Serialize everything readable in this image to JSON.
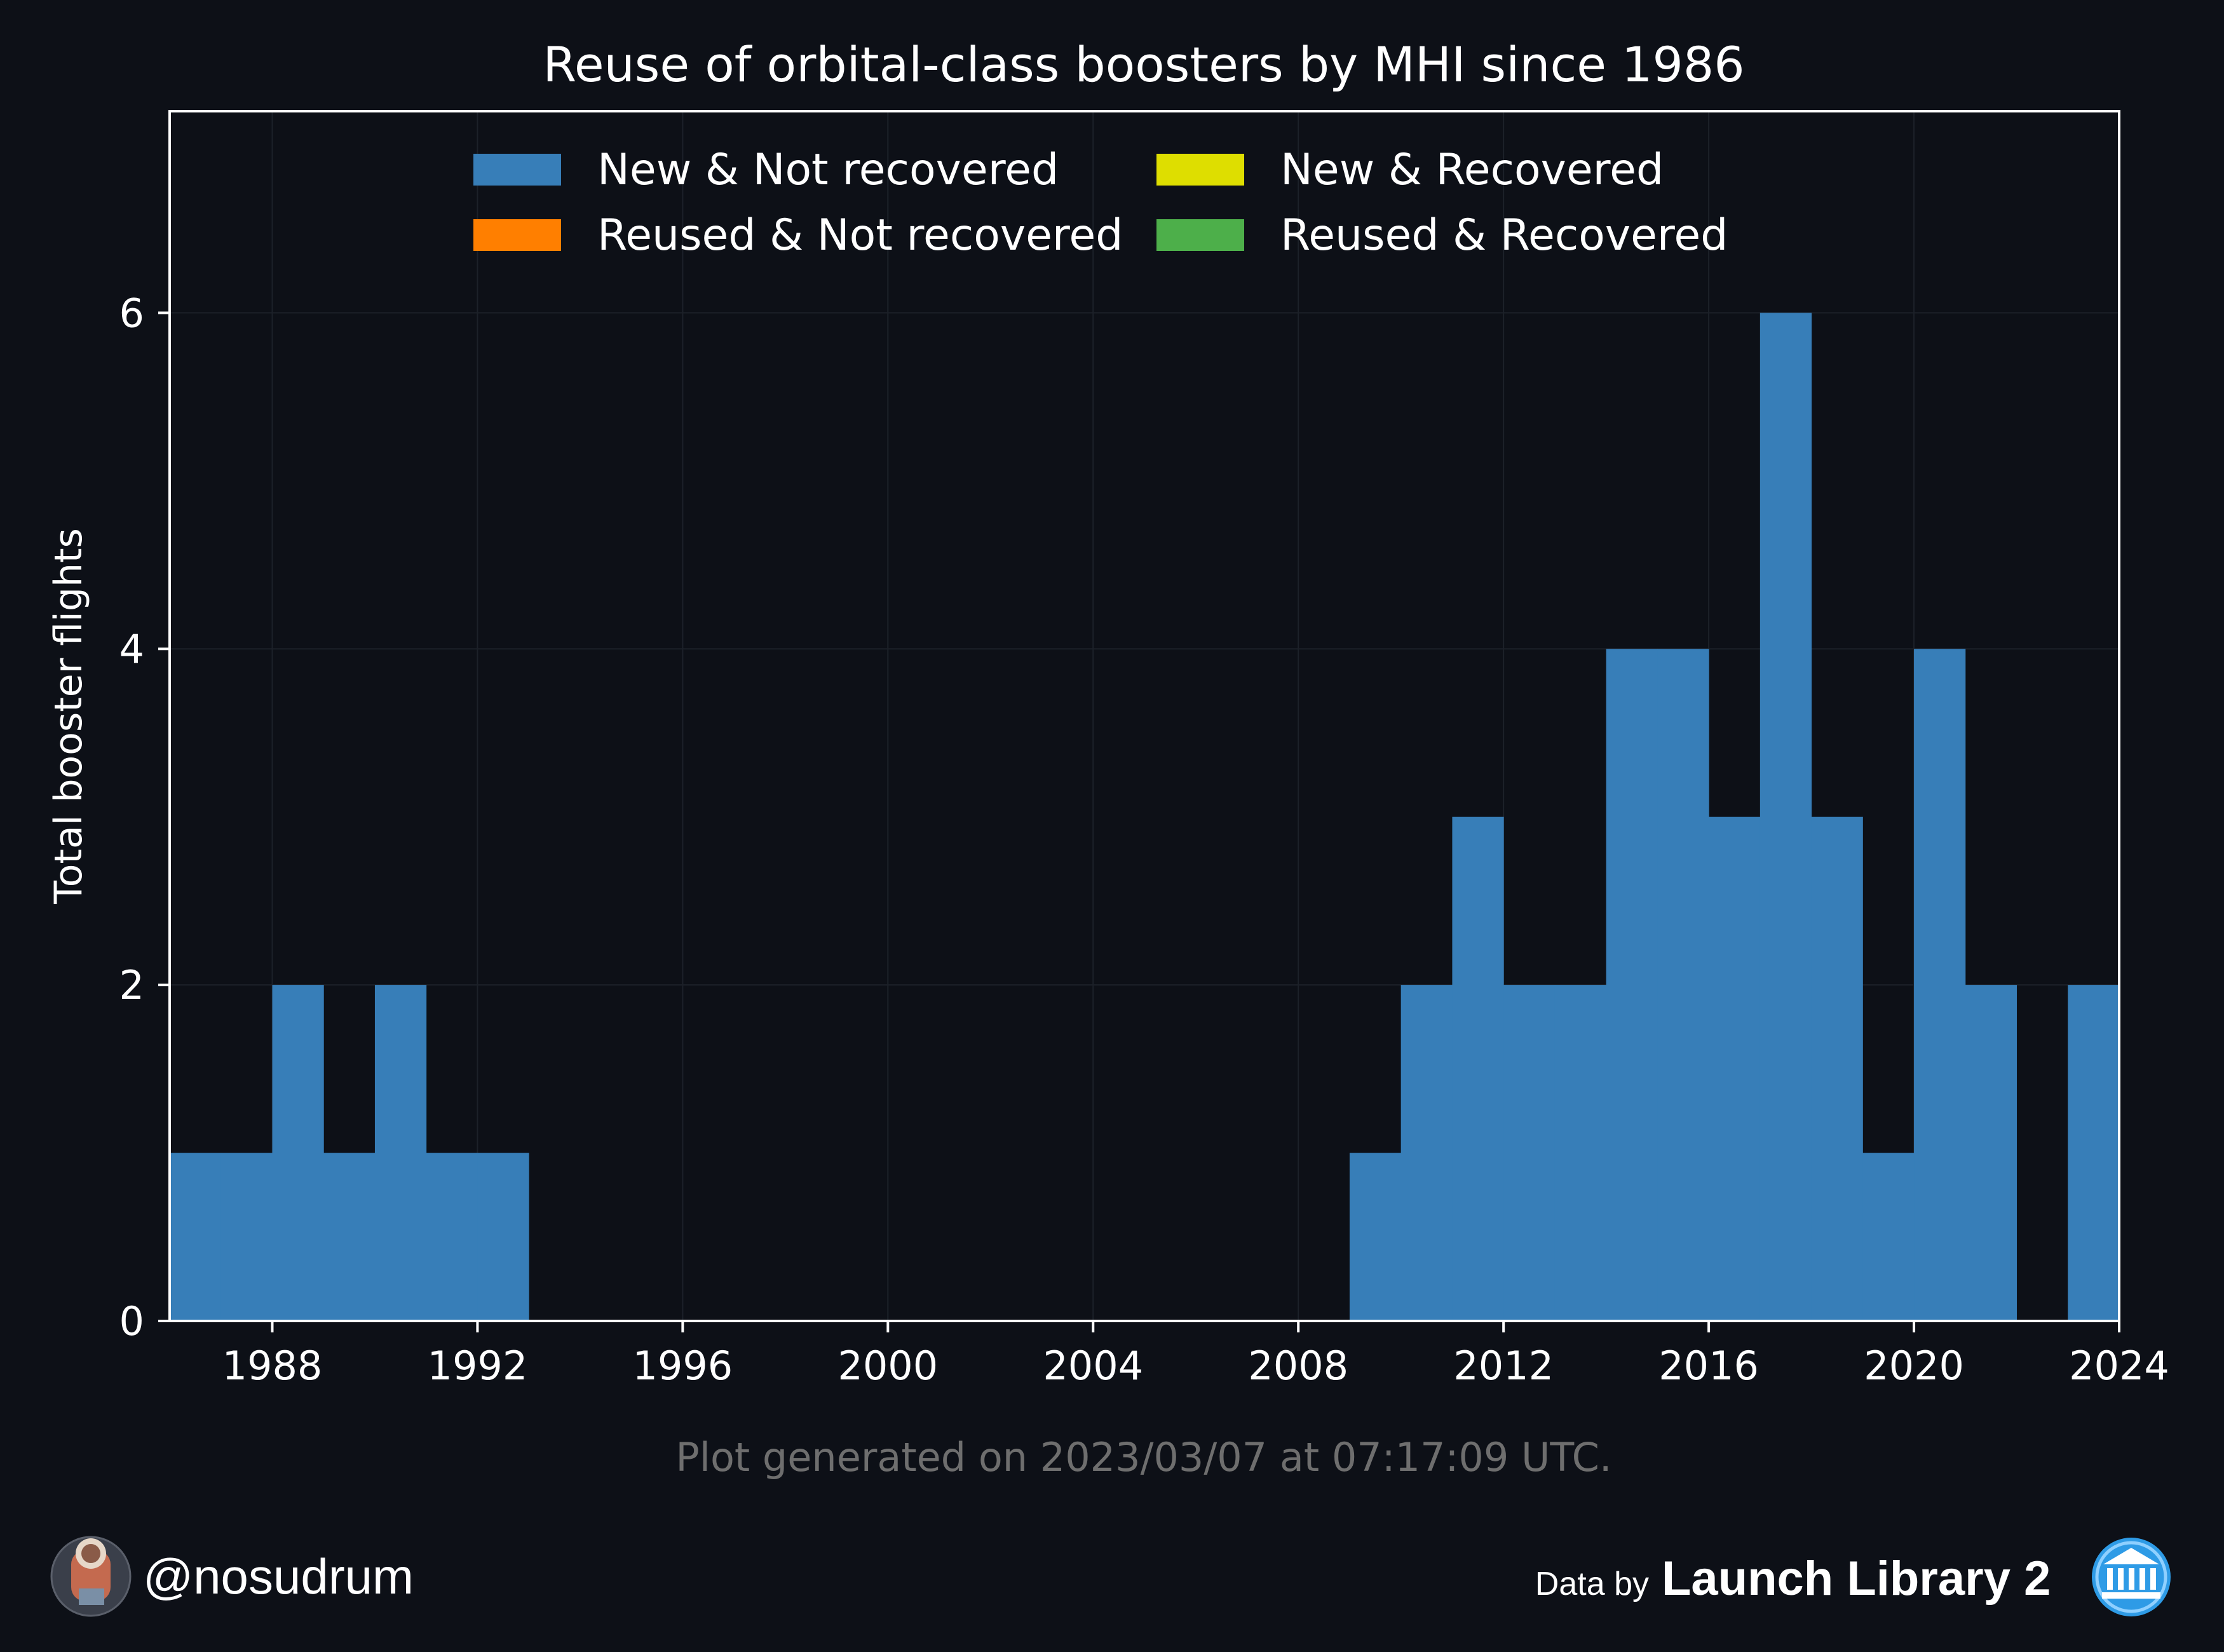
{
  "chart_data": {
    "type": "bar",
    "title": "Reuse of orbital-class boosters by MHI since 1986",
    "xlabel": "",
    "ylabel": "Total booster flights",
    "xlim": [
      1986,
      2024
    ],
    "ylim": [
      0,
      7.2
    ],
    "x_ticks": [
      "1988",
      "1992",
      "1996",
      "2000",
      "2004",
      "2008",
      "2012",
      "2016",
      "2020",
      "2024"
    ],
    "y_ticks": [
      "0",
      "2",
      "4",
      "6"
    ],
    "bin_width_years": 1,
    "x": [
      1986,
      1987,
      1988,
      1989,
      1990,
      1991,
      1992,
      1993,
      1994,
      1995,
      1996,
      1997,
      1998,
      1999,
      2000,
      2001,
      2002,
      2003,
      2004,
      2005,
      2006,
      2007,
      2008,
      2009,
      2010,
      2011,
      2012,
      2013,
      2014,
      2015,
      2016,
      2017,
      2018,
      2019,
      2020,
      2021,
      2022,
      2023
    ],
    "series": [
      {
        "name": "New & Not recovered",
        "color": "#377eb8",
        "values": [
          1,
          1,
          2,
          1,
          2,
          1,
          1,
          0,
          0,
          0,
          0,
          0,
          0,
          0,
          0,
          0,
          0,
          0,
          0,
          0,
          0,
          0,
          0,
          1,
          2,
          3,
          2,
          2,
          4,
          4,
          3,
          6,
          3,
          1,
          4,
          2,
          0,
          2
        ]
      },
      {
        "name": "New & Recovered",
        "color": "#dede00",
        "values": [
          0,
          0,
          0,
          0,
          0,
          0,
          0,
          0,
          0,
          0,
          0,
          0,
          0,
          0,
          0,
          0,
          0,
          0,
          0,
          0,
          0,
          0,
          0,
          0,
          0,
          0,
          0,
          0,
          0,
          0,
          0,
          0,
          0,
          0,
          0,
          0,
          0,
          0
        ]
      },
      {
        "name": "Reused & Not recovered",
        "color": "#ff7f00",
        "values": [
          0,
          0,
          0,
          0,
          0,
          0,
          0,
          0,
          0,
          0,
          0,
          0,
          0,
          0,
          0,
          0,
          0,
          0,
          0,
          0,
          0,
          0,
          0,
          0,
          0,
          0,
          0,
          0,
          0,
          0,
          0,
          0,
          0,
          0,
          0,
          0,
          0,
          0
        ]
      },
      {
        "name": "Reused & Recovered",
        "color": "#4daf4a",
        "values": [
          0,
          0,
          0,
          0,
          0,
          0,
          0,
          0,
          0,
          0,
          0,
          0,
          0,
          0,
          0,
          0,
          0,
          0,
          0,
          0,
          0,
          0,
          0,
          0,
          0,
          0,
          0,
          0,
          0,
          0,
          0,
          0,
          0,
          0,
          0,
          0,
          0,
          0
        ]
      }
    ],
    "legend_order": [
      0,
      2,
      1,
      3
    ],
    "legend_placement": "top-center",
    "grid": true
  },
  "footnote": "Plot generated on 2023/03/07 at 07:17:09 UTC.",
  "author_handle": "@nosudrum",
  "credit_prefix": "Data by",
  "credit_name": "Launch Library 2",
  "colors": {
    "background": "#0d1017",
    "frame": "#ffffff",
    "grid": "#1c2129"
  },
  "icons": {
    "avatar": "astronaut-avatar-icon",
    "credit_logo": "launch-library-logo-icon"
  }
}
